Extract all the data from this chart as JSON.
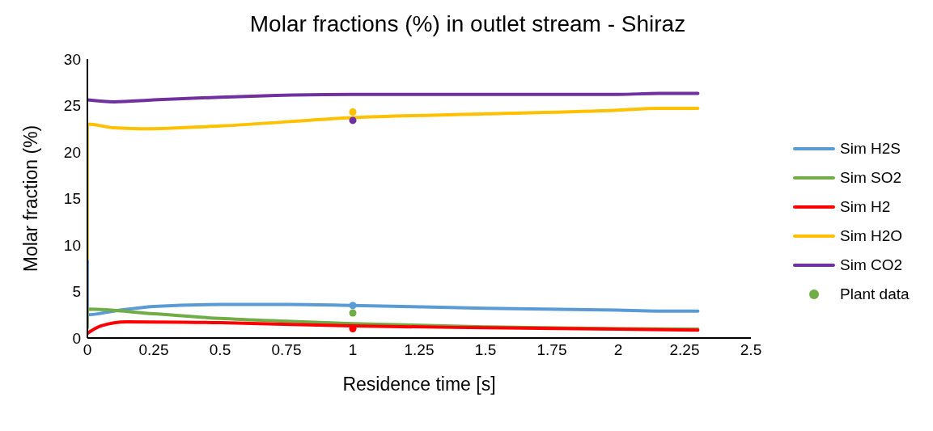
{
  "chart_data": {
    "type": "line",
    "title": "Molar fractions (%) in outlet stream - Shiraz",
    "xlabel": "Residence time [s]",
    "ylabel": "Molar fraction (%)",
    "xlim": [
      0,
      2.5
    ],
    "xticks": [
      0,
      0.25,
      0.5,
      0.75,
      1,
      1.25,
      1.5,
      1.75,
      2,
      2.25,
      2.5
    ],
    "ylim": [
      0,
      30
    ],
    "yticks": [
      0,
      5,
      10,
      15,
      20,
      25,
      30
    ],
    "grid": false,
    "legend": "right",
    "marker": "none",
    "line_style": "solid",
    "series": [
      {
        "name": "Sim H2S",
        "color": "#5b9bd5",
        "x": [
          0,
          0,
          0.1,
          0.25,
          0.5,
          0.75,
          1,
          1.5,
          2,
          2.15,
          2.3
        ],
        "values": [
          8.5,
          2.5,
          2.9,
          3.4,
          3.6,
          3.6,
          3.5,
          3.2,
          3.0,
          2.9,
          2.9
        ]
      },
      {
        "name": "Sim SO2",
        "color": "#70ad47",
        "x": [
          0,
          0,
          0.25,
          0.5,
          0.75,
          1,
          1.5,
          2,
          2.3
        ],
        "values": [
          1.1,
          3.1,
          2.6,
          2.1,
          1.8,
          1.55,
          1.2,
          1.0,
          0.95
        ]
      },
      {
        "name": "Sim H2",
        "color": "#ff0000",
        "x": [
          0,
          0.05,
          0.15,
          0.5,
          1,
          1.5,
          2,
          2.3
        ],
        "values": [
          0.5,
          1.3,
          1.75,
          1.65,
          1.3,
          1.1,
          0.95,
          0.85
        ]
      },
      {
        "name": "Sim H2O",
        "color": "#ffc000",
        "x": [
          0,
          0,
          0.1,
          0.2,
          0.5,
          1,
          1.5,
          2,
          2.15,
          2.3
        ],
        "values": [
          8.5,
          23.0,
          22.6,
          22.5,
          22.8,
          23.7,
          24.1,
          24.5,
          24.7,
          24.7
        ]
      },
      {
        "name": "Sim CO2",
        "color": "#7030a0",
        "x": [
          0,
          0.1,
          0.25,
          0.5,
          1,
          1.5,
          2,
          2.15,
          2.3
        ],
        "values": [
          25.6,
          25.4,
          25.6,
          25.9,
          26.2,
          26.2,
          26.2,
          26.3,
          26.3
        ]
      },
      {
        "name": "Plant data",
        "type": "scatter",
        "marker": "circle",
        "color": "#70ad47",
        "x": [
          1,
          1,
          1,
          1,
          1
        ],
        "values": [
          24.3,
          23.4,
          3.5,
          2.7,
          1.0
        ],
        "colors": [
          "#ffc000",
          "#7030a0",
          "#5b9bd5",
          "#70ad47",
          "#ff0000"
        ]
      }
    ]
  }
}
